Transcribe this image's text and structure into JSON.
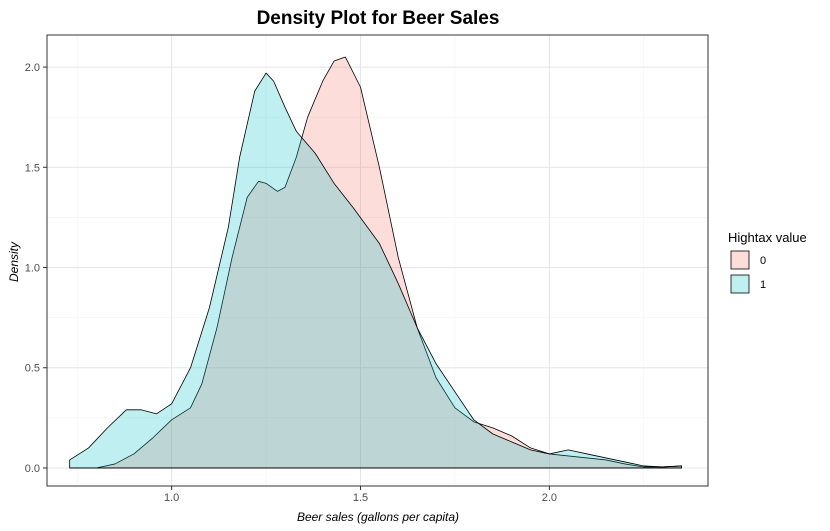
{
  "chart_data": {
    "type": "area",
    "title": "Density Plot for Beer Sales",
    "xlabel": "Beer sales (gallons per capita)",
    "ylabel": "Density",
    "xlim": [
      0.67,
      2.42
    ],
    "ylim": [
      -0.09,
      2.16
    ],
    "x_ticks": [
      1.0,
      1.5,
      2.0
    ],
    "x_tick_labels": [
      "1.0",
      "1.5",
      "2.0"
    ],
    "y_ticks": [
      0.0,
      0.5,
      1.0,
      1.5,
      2.0
    ],
    "y_tick_labels": [
      "0.0",
      "0.5",
      "1.0",
      "1.5",
      "2.0"
    ],
    "grid": true,
    "legend": {
      "title": "Hightax value",
      "placement": "right",
      "entries": [
        {
          "label": "0",
          "color": "#F8766D"
        },
        {
          "label": "1",
          "color": "#00BFC4"
        }
      ]
    },
    "series": [
      {
        "name": "0",
        "color": "#F8766D",
        "x": [
          0.73,
          0.8,
          0.85,
          0.9,
          0.95,
          1.0,
          1.05,
          1.08,
          1.12,
          1.16,
          1.2,
          1.23,
          1.25,
          1.28,
          1.3,
          1.33,
          1.36,
          1.4,
          1.43,
          1.46,
          1.5,
          1.55,
          1.6,
          1.65,
          1.7,
          1.75,
          1.8,
          1.85,
          1.9,
          1.95,
          2.0,
          2.05,
          2.1,
          2.15,
          2.2,
          2.25,
          2.3,
          2.35
        ],
        "y": [
          0.0,
          0.0,
          0.02,
          0.07,
          0.15,
          0.24,
          0.3,
          0.42,
          0.7,
          1.05,
          1.35,
          1.43,
          1.42,
          1.38,
          1.4,
          1.55,
          1.75,
          1.93,
          2.03,
          2.05,
          1.9,
          1.5,
          1.05,
          0.7,
          0.45,
          0.3,
          0.23,
          0.2,
          0.16,
          0.1,
          0.07,
          0.06,
          0.05,
          0.04,
          0.02,
          0.005,
          0.005,
          0.01
        ]
      },
      {
        "name": "1",
        "color": "#00BFC4",
        "x": [
          0.73,
          0.78,
          0.83,
          0.88,
          0.92,
          0.96,
          1.0,
          1.05,
          1.1,
          1.15,
          1.18,
          1.22,
          1.25,
          1.27,
          1.3,
          1.33,
          1.38,
          1.43,
          1.48,
          1.55,
          1.6,
          1.65,
          1.7,
          1.75,
          1.8,
          1.85,
          1.9,
          1.95,
          2.0,
          2.05,
          2.1,
          2.15,
          2.2,
          2.25,
          2.3,
          2.35
        ],
        "y": [
          0.04,
          0.1,
          0.2,
          0.29,
          0.29,
          0.27,
          0.32,
          0.5,
          0.8,
          1.2,
          1.55,
          1.88,
          1.97,
          1.93,
          1.8,
          1.68,
          1.57,
          1.42,
          1.3,
          1.12,
          0.92,
          0.7,
          0.52,
          0.38,
          0.24,
          0.17,
          0.13,
          0.09,
          0.07,
          0.09,
          0.07,
          0.05,
          0.03,
          0.01,
          0.005,
          0.01
        ]
      }
    ]
  }
}
